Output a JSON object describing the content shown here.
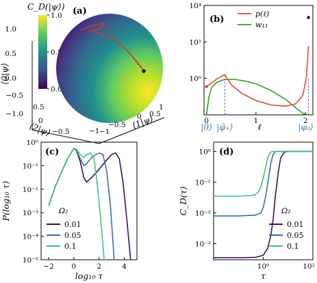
{
  "colors": {
    "p": "#e2492a",
    "w11": "#3a9a2b",
    "marker_line": "#3b78b8",
    "omega_001": "#3d0f5a",
    "omega_005": "#3a6e96",
    "omega_01": "#3dc07d",
    "traj": "#d63a26"
  },
  "chart_data": [
    {
      "type": "scatter",
      "panel_label": "(a)",
      "colorbar": {
        "title": "C_D(|ψ⟩)",
        "ticks": [
          "0.0",
          "0.5",
          "1.0"
        ],
        "range": [
          0,
          1
        ]
      },
      "axes": {
        "z_label": "⟨0|ψ⟩",
        "x_label": "⟨1|ψ⟩",
        "y_label": "⟨2|ψ⟩",
        "z_ticks": [
          "1.0",
          "0.5",
          "0.0",
          "−0.5",
          "−1.0"
        ],
        "x_ticks": [
          "−1",
          "−0.5",
          "0",
          "0.5",
          "1"
        ],
        "y_ticks": [
          "0.5",
          "0",
          "−0.5",
          "−1"
        ]
      },
      "trajectory_endpoint": "black dot"
    },
    {
      "type": "line",
      "panel_label": "(b)",
      "xlabel": "ℓ",
      "x_ticks": [
        "0",
        "1",
        "2"
      ],
      "xlim": [
        -0.05,
        2.15
      ],
      "yscale": "log",
      "ylim": [
        0.01,
        10000
      ],
      "y_ticks": [
        "10⁰",
        "10²",
        "10⁴"
      ],
      "extra_x_labels": [
        "|0⟩",
        "|φ̃₊⟩",
        "|φₐ⟩"
      ],
      "marker_positions": [
        0.37,
        2.06
      ],
      "legend_position": "top-right",
      "series": [
        {
          "name": "p(ℓ)",
          "x": [
            0.0,
            0.1,
            0.2,
            0.3,
            0.37,
            0.5,
            0.7,
            1.0,
            1.3,
            1.6,
            1.8,
            1.95,
            2.02,
            2.06
          ],
          "y": [
            0.35,
            0.55,
            0.9,
            1.3,
            1.6,
            0.45,
            0.16,
            0.06,
            0.035,
            0.03,
            0.04,
            0.12,
            1.2,
            60
          ]
        },
        {
          "name": "w₁₁",
          "x": [
            0.0,
            0.05,
            0.1,
            0.2,
            0.35,
            0.55,
            0.8,
            1.0,
            1.3,
            1.6,
            1.8,
            1.95,
            2.06
          ],
          "y": [
            0.01,
            0.1,
            0.3,
            0.6,
            0.85,
            0.9,
            0.7,
            0.5,
            0.22,
            0.07,
            0.025,
            0.012,
            0.01
          ]
        }
      ]
    },
    {
      "type": "line",
      "panel_label": "(c)",
      "xlabel": "log₁₀ τ",
      "ylabel": "P(log₁₀ τ)",
      "x_ticks": [
        "−2",
        "0",
        "2",
        "4"
      ],
      "xlim": [
        -2.6,
        5
      ],
      "yscale": "log",
      "ylim": [
        1e-05,
        1
      ],
      "y_ticks": [
        "10⁰",
        "10⁻¹",
        "10⁻²",
        "10⁻³",
        "10⁻⁴",
        "10⁻⁵"
      ],
      "legend_title": "Ω₂",
      "legend_position": "bottom-left",
      "series": [
        {
          "name": "0.01",
          "x": [
            -2.0,
            -1.5,
            -1.0,
            -0.5,
            0.0,
            0.2,
            0.5,
            0.8,
            1.0,
            1.5,
            2.0,
            2.5,
            3.0,
            3.3,
            3.6,
            3.9,
            4.2,
            4.5
          ],
          "y": [
            0.002,
            0.012,
            0.05,
            0.2,
            0.55,
            0.45,
            0.15,
            0.03,
            0.02,
            0.035,
            0.07,
            0.15,
            0.3,
            0.35,
            0.2,
            0.02,
            0.0005,
            1e-05
          ]
        },
        {
          "name": "0.05",
          "x": [
            -2.0,
            -1.5,
            -1.0,
            -0.5,
            0.0,
            0.2,
            0.5,
            0.8,
            1.0,
            1.5,
            2.0,
            2.3,
            2.6,
            2.9,
            3.2
          ],
          "y": [
            0.002,
            0.012,
            0.05,
            0.2,
            0.55,
            0.45,
            0.2,
            0.1,
            0.12,
            0.25,
            0.35,
            0.3,
            0.06,
            0.002,
            1e-05
          ]
        },
        {
          "name": "0.1",
          "x": [
            -2.0,
            -1.5,
            -1.0,
            -0.5,
            0.0,
            0.2,
            0.5,
            0.8,
            1.0,
            1.3,
            1.6,
            1.9,
            2.2,
            2.4
          ],
          "y": [
            0.002,
            0.012,
            0.05,
            0.2,
            0.55,
            0.5,
            0.3,
            0.22,
            0.3,
            0.35,
            0.2,
            0.01,
            0.0002,
            1e-05
          ]
        }
      ]
    },
    {
      "type": "line",
      "panel_label": "(d)",
      "xlabel": "τ",
      "ylabel": "C_D(τ)",
      "xscale": "log",
      "xlim": [
        0.01,
        100
      ],
      "x_ticks": [
        "10⁰",
        "10²"
      ],
      "yscale": "log",
      "ylim": [
        0.0003,
        2
      ],
      "y_ticks": [
        "10⁰",
        "10⁻¹",
        "10⁻²",
        "10⁻³"
      ],
      "legend_title": "Ω₂",
      "legend_position": "bottom-right",
      "series": [
        {
          "name": "0.01",
          "x": [
            0.01,
            0.1,
            0.5,
            1,
            1.5,
            2,
            2.5,
            3,
            4,
            5,
            7,
            10,
            100
          ],
          "y": [
            0.00035,
            0.00035,
            0.00036,
            0.00042,
            0.0007,
            0.0018,
            0.006,
            0.03,
            0.2,
            0.6,
            0.95,
            1.0,
            1.0
          ]
        },
        {
          "name": "0.05",
          "x": [
            0.01,
            0.1,
            0.5,
            0.8,
            1.0,
            1.3,
            1.6,
            2,
            2.5,
            3,
            4,
            100
          ],
          "y": [
            0.008,
            0.008,
            0.0085,
            0.01,
            0.015,
            0.04,
            0.12,
            0.4,
            0.8,
            0.97,
            1.0,
            1.0
          ]
        },
        {
          "name": "0.1",
          "x": [
            0.01,
            0.1,
            0.4,
            0.6,
            0.8,
            1.0,
            1.3,
            1.6,
            2.0,
            2.5,
            100
          ],
          "y": [
            0.035,
            0.035,
            0.037,
            0.045,
            0.07,
            0.14,
            0.35,
            0.7,
            0.95,
            1.0,
            1.0
          ]
        }
      ]
    }
  ]
}
